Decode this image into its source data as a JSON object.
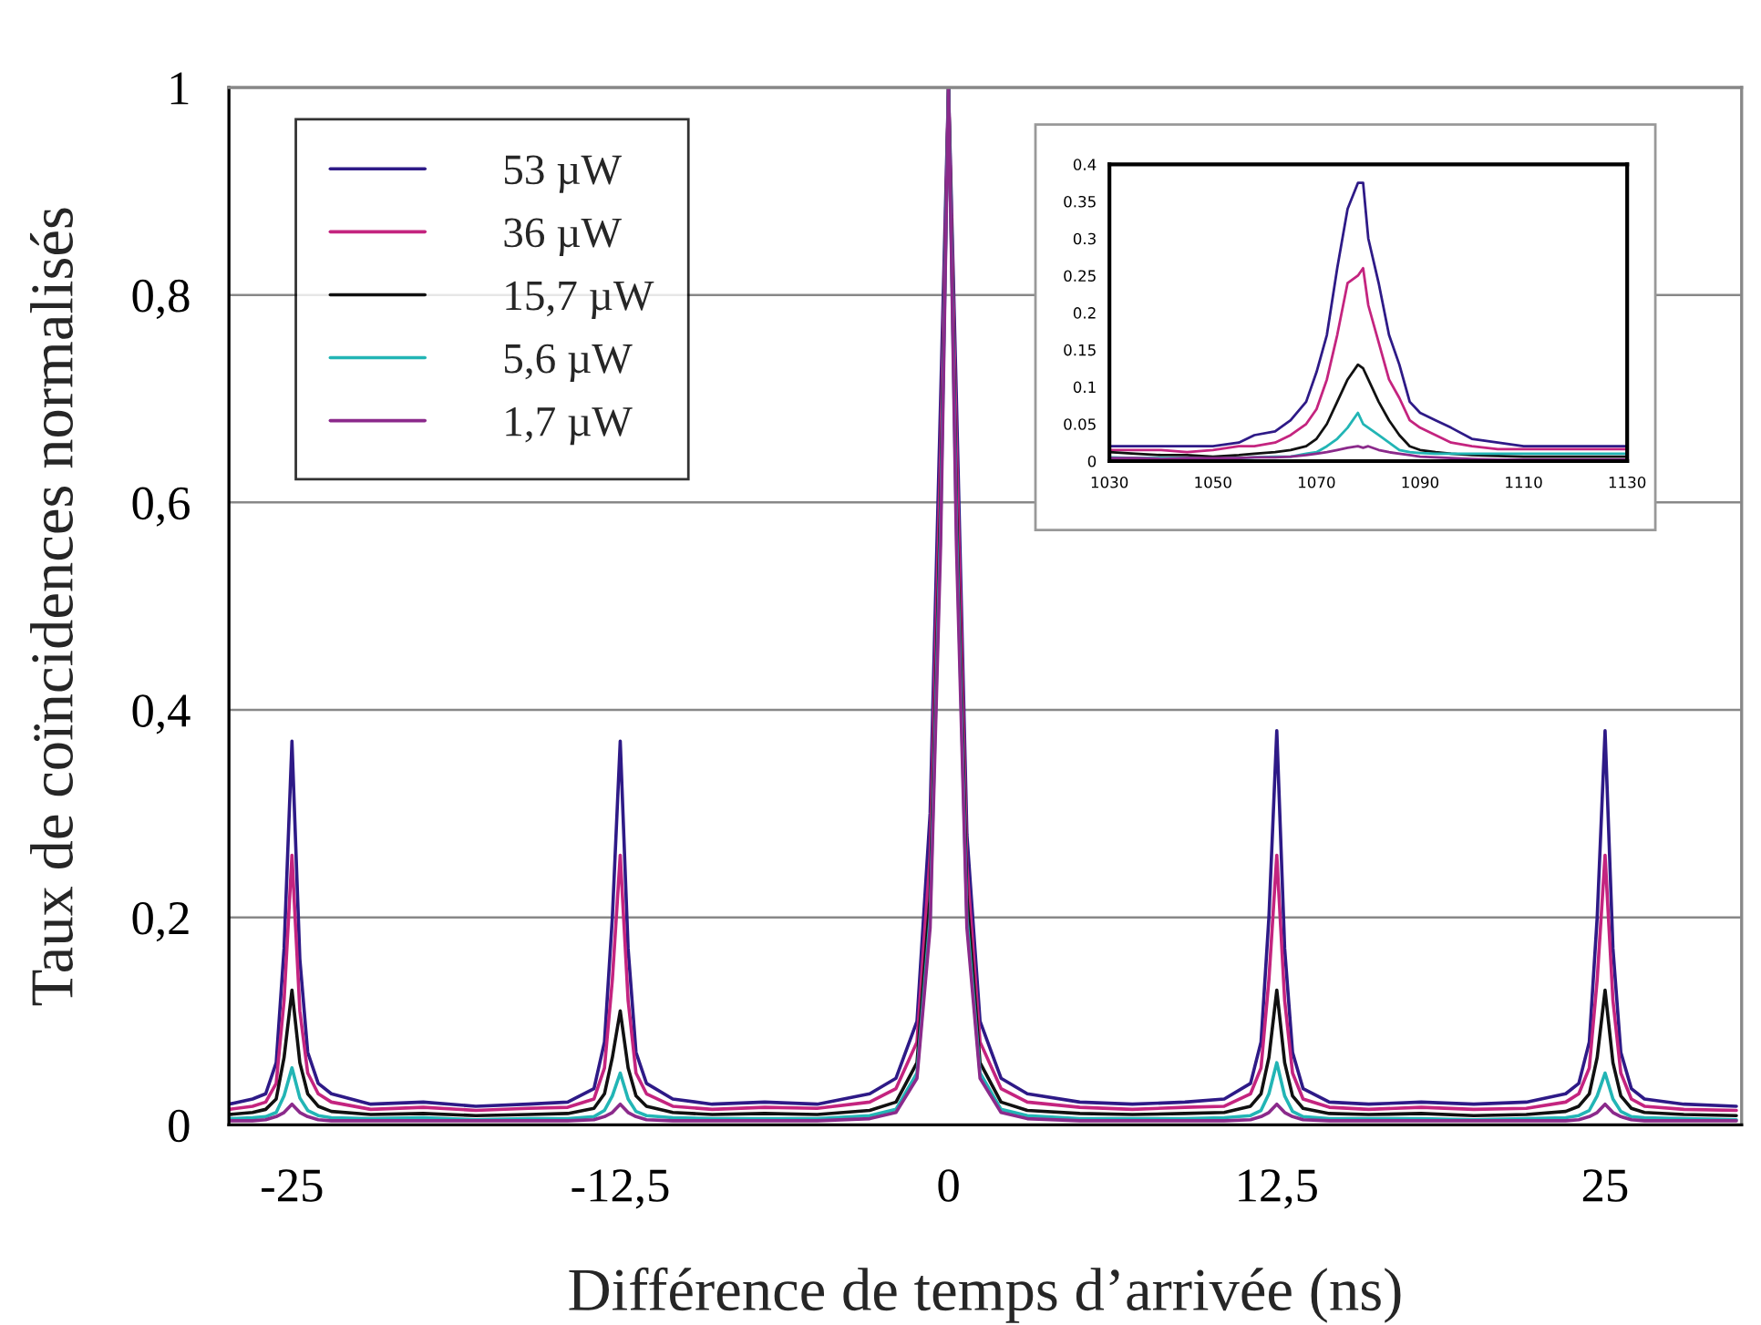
{
  "chart_data": [
    {
      "type": "line",
      "xlabel": "Différence de temps d’arrivée (ns)",
      "ylabel": "Taux de coïncidences normalisés",
      "x": [
        -27.4,
        -26.5,
        -26,
        -25.6,
        -25.3,
        -25,
        -24.7,
        -24.4,
        -24,
        -23.5,
        -22,
        -20,
        -18,
        -16,
        -14.5,
        -13.5,
        -13.1,
        -12.8,
        -12.5,
        -12.2,
        -11.9,
        -11.5,
        -10.5,
        -9,
        -7,
        -5,
        -3,
        -2,
        -1.2,
        -0.7,
        -0.3,
        0,
        0.3,
        0.7,
        1.2,
        2,
        3,
        5,
        7,
        9,
        10.5,
        11.5,
        11.9,
        12.2,
        12.5,
        12.8,
        13.1,
        13.5,
        14.5,
        16,
        18,
        20,
        22,
        23.5,
        24,
        24.4,
        24.7,
        25,
        25.3,
        25.6,
        26,
        26.5,
        28,
        30
      ],
      "series": [
        {
          "name": "53 µW",
          "color": "#2e1a87",
          "values": [
            0.02,
            0.025,
            0.03,
            0.06,
            0.17,
            0.37,
            0.16,
            0.07,
            0.04,
            0.03,
            0.02,
            0.022,
            0.018,
            0.02,
            0.022,
            0.035,
            0.08,
            0.2,
            0.37,
            0.17,
            0.07,
            0.04,
            0.025,
            0.02,
            0.022,
            0.02,
            0.03,
            0.045,
            0.1,
            0.3,
            0.7,
            1,
            0.7,
            0.28,
            0.1,
            0.045,
            0.03,
            0.022,
            0.02,
            0.022,
            0.025,
            0.04,
            0.08,
            0.2,
            0.38,
            0.17,
            0.07,
            0.035,
            0.022,
            0.02,
            0.022,
            0.02,
            0.022,
            0.03,
            0.04,
            0.08,
            0.2,
            0.38,
            0.17,
            0.07,
            0.035,
            0.025,
            0.02,
            0.018
          ]
        },
        {
          "name": "36 µW",
          "color": "#c4247f",
          "values": [
            0.015,
            0.018,
            0.022,
            0.04,
            0.12,
            0.26,
            0.11,
            0.05,
            0.03,
            0.022,
            0.015,
            0.017,
            0.014,
            0.016,
            0.017,
            0.025,
            0.055,
            0.14,
            0.26,
            0.12,
            0.05,
            0.03,
            0.018,
            0.015,
            0.017,
            0.016,
            0.022,
            0.035,
            0.08,
            0.26,
            0.65,
            1,
            0.66,
            0.25,
            0.08,
            0.035,
            0.022,
            0.017,
            0.015,
            0.017,
            0.018,
            0.03,
            0.055,
            0.14,
            0.26,
            0.12,
            0.05,
            0.025,
            0.017,
            0.015,
            0.017,
            0.015,
            0.016,
            0.022,
            0.03,
            0.055,
            0.14,
            0.26,
            0.12,
            0.05,
            0.025,
            0.018,
            0.015,
            0.014
          ]
        },
        {
          "name": "15,7 µW",
          "color": "#111111",
          "values": [
            0.01,
            0.012,
            0.015,
            0.025,
            0.065,
            0.13,
            0.06,
            0.03,
            0.018,
            0.013,
            0.01,
            0.011,
            0.009,
            0.01,
            0.011,
            0.016,
            0.03,
            0.065,
            0.11,
            0.055,
            0.028,
            0.018,
            0.012,
            0.01,
            0.011,
            0.01,
            0.014,
            0.022,
            0.06,
            0.22,
            0.6,
            1,
            0.6,
            0.22,
            0.06,
            0.022,
            0.014,
            0.011,
            0.01,
            0.011,
            0.012,
            0.018,
            0.03,
            0.065,
            0.13,
            0.06,
            0.028,
            0.016,
            0.011,
            0.01,
            0.011,
            0.009,
            0.01,
            0.013,
            0.018,
            0.03,
            0.065,
            0.13,
            0.06,
            0.028,
            0.016,
            0.012,
            0.01,
            0.009
          ]
        },
        {
          "name": "5,6 µW",
          "color": "#22b5b5",
          "values": [
            0.006,
            0.007,
            0.008,
            0.012,
            0.028,
            0.055,
            0.026,
            0.014,
            0.009,
            0.007,
            0.006,
            0.007,
            0.005,
            0.006,
            0.006,
            0.008,
            0.014,
            0.028,
            0.05,
            0.025,
            0.013,
            0.009,
            0.007,
            0.006,
            0.006,
            0.006,
            0.009,
            0.015,
            0.05,
            0.2,
            0.58,
            1,
            0.58,
            0.2,
            0.05,
            0.015,
            0.009,
            0.006,
            0.006,
            0.006,
            0.007,
            0.009,
            0.014,
            0.03,
            0.06,
            0.028,
            0.013,
            0.008,
            0.006,
            0.006,
            0.006,
            0.005,
            0.006,
            0.007,
            0.009,
            0.014,
            0.028,
            0.05,
            0.025,
            0.013,
            0.008,
            0.007,
            0.006,
            0.005
          ]
        },
        {
          "name": "1,7 µW",
          "color": "#8b2a8b",
          "values": [
            0.004,
            0.004,
            0.005,
            0.008,
            0.012,
            0.02,
            0.012,
            0.008,
            0.005,
            0.004,
            0.004,
            0.004,
            0.004,
            0.004,
            0.004,
            0.005,
            0.008,
            0.012,
            0.02,
            0.012,
            0.008,
            0.005,
            0.004,
            0.004,
            0.004,
            0.004,
            0.006,
            0.012,
            0.045,
            0.19,
            0.56,
            1,
            0.56,
            0.19,
            0.045,
            0.012,
            0.006,
            0.004,
            0.004,
            0.004,
            0.004,
            0.005,
            0.008,
            0.012,
            0.02,
            0.012,
            0.008,
            0.005,
            0.004,
            0.004,
            0.004,
            0.004,
            0.004,
            0.004,
            0.005,
            0.008,
            0.012,
            0.02,
            0.012,
            0.008,
            0.005,
            0.004,
            0.004,
            0.004
          ]
        }
      ],
      "xlim": [
        -27.4,
        30.2
      ],
      "ylim": [
        0,
        1
      ],
      "xticks": [
        {
          "value": -25,
          "label": "-25"
        },
        {
          "value": -12.5,
          "label": "-12,5"
        },
        0,
        {
          "value": 12.5,
          "label": "12,5"
        },
        25
      ],
      "yticks": [
        0,
        {
          "value": 0.2,
          "label": "0,2"
        },
        {
          "value": 0.4,
          "label": "0,4"
        },
        {
          "value": 0.6,
          "label": "0,6"
        },
        {
          "value": 0.8,
          "label": "0,8"
        },
        1
      ],
      "grid": "y",
      "legend": "top left",
      "line_style": "solid",
      "marker": "none"
    },
    {
      "type": "line",
      "x": [
        1030,
        1035,
        1040,
        1045,
        1050,
        1055,
        1058,
        1062,
        1065,
        1068,
        1070,
        1072,
        1074,
        1076,
        1078,
        1079,
        1080,
        1082,
        1084,
        1086,
        1088,
        1090,
        1093,
        1096,
        1100,
        1105,
        1110,
        1115,
        1120,
        1125,
        1130
      ],
      "series": [
        {
          "color": "#2e1a87",
          "values": [
            0.02,
            0.02,
            0.02,
            0.02,
            0.02,
            0.025,
            0.035,
            0.04,
            0.055,
            0.08,
            0.12,
            0.17,
            0.26,
            0.34,
            0.375,
            0.375,
            0.3,
            0.24,
            0.17,
            0.13,
            0.08,
            0.065,
            0.055,
            0.045,
            0.03,
            0.025,
            0.02,
            0.02,
            0.02,
            0.02,
            0.02
          ]
        },
        {
          "color": "#c4247f",
          "values": [
            0.015,
            0.015,
            0.015,
            0.012,
            0.015,
            0.02,
            0.02,
            0.025,
            0.035,
            0.05,
            0.07,
            0.11,
            0.17,
            0.24,
            0.25,
            0.26,
            0.21,
            0.16,
            0.11,
            0.085,
            0.055,
            0.045,
            0.035,
            0.025,
            0.02,
            0.016,
            0.016,
            0.016,
            0.016,
            0.016,
            0.016
          ]
        },
        {
          "color": "#111111",
          "values": [
            0.012,
            0.01,
            0.008,
            0.008,
            0.006,
            0.008,
            0.01,
            0.012,
            0.015,
            0.02,
            0.03,
            0.05,
            0.08,
            0.11,
            0.13,
            0.125,
            0.11,
            0.08,
            0.055,
            0.035,
            0.02,
            0.015,
            0.012,
            0.01,
            0.008,
            0.007,
            0.006,
            0.006,
            0.006,
            0.006,
            0.006
          ]
        },
        {
          "color": "#22b5b5",
          "values": [
            0.005,
            0.004,
            0.004,
            0.004,
            0.003,
            0.004,
            0.005,
            0.006,
            0.006,
            0.01,
            0.012,
            0.02,
            0.03,
            0.045,
            0.065,
            0.05,
            0.045,
            0.035,
            0.025,
            0.015,
            0.012,
            0.011,
            0.01,
            0.01,
            0.01,
            0.01,
            0.01,
            0.01,
            0.01,
            0.01,
            0.01
          ]
        },
        {
          "color": "#8b2a8b",
          "values": [
            0.004,
            0.004,
            0.003,
            0.004,
            0.004,
            0.004,
            0.005,
            0.005,
            0.006,
            0.008,
            0.01,
            0.012,
            0.015,
            0.018,
            0.02,
            0.018,
            0.02,
            0.015,
            0.012,
            0.01,
            0.008,
            0.006,
            0.005,
            0.004,
            0.003,
            0.002,
            0.002,
            0.002,
            0.002,
            0.002,
            0.002
          ]
        }
      ],
      "xlim": [
        1030,
        1130
      ],
      "ylim": [
        0,
        0.4
      ],
      "xticks": [
        1030,
        1050,
        1070,
        1090,
        1110,
        1130
      ],
      "yticks": [
        0,
        0.05,
        0.1,
        0.15,
        0.2,
        0.25,
        0.3,
        0.35,
        0.4
      ],
      "line_style": "solid",
      "marker": "none"
    }
  ]
}
